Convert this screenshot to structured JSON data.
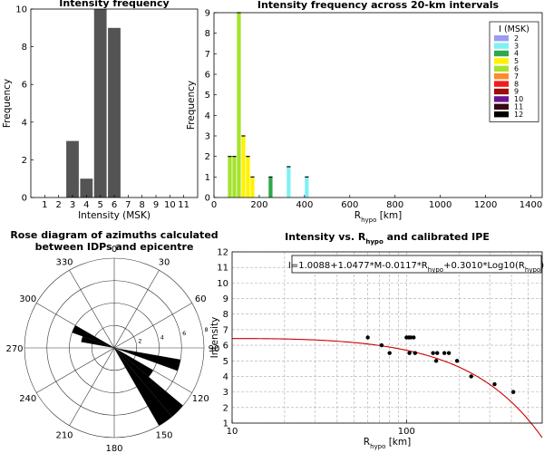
{
  "chart_data": [
    {
      "type": "bar",
      "title": "Intensity frequency",
      "xlabel": "Intensity (MSK)",
      "ylabel": "Frequency",
      "categories": [
        1,
        2,
        3,
        4,
        5,
        6,
        7,
        8,
        9,
        10,
        11
      ],
      "values": [
        0,
        0,
        3,
        1,
        10,
        9,
        0,
        0,
        0,
        0,
        0
      ],
      "xlim": [
        0,
        12
      ],
      "ylim": [
        0,
        10
      ],
      "xticks": [
        1,
        2,
        3,
        4,
        5,
        6,
        7,
        8,
        9,
        10,
        11
      ],
      "yticks": [
        0,
        2,
        4,
        6,
        8,
        10
      ],
      "bar_color": "#545454"
    },
    {
      "type": "bar",
      "title": "Intensity frequency across 20-km intervals",
      "xlabel": "R",
      "xlabel_sub": "hypo",
      "xlabel_unit": "[km]",
      "ylabel": "Frequency",
      "xlim": [
        0,
        1450
      ],
      "ylim": [
        0,
        9
      ],
      "xticks": [
        0,
        200,
        400,
        600,
        800,
        1000,
        1200,
        1400
      ],
      "yticks": [
        0,
        1,
        2,
        3,
        4,
        5,
        6,
        7,
        8,
        9
      ],
      "legend_title": "I (MSK)",
      "legend_position": "top-right",
      "series": [
        {
          "name": "2",
          "color": "#9a9cf0"
        },
        {
          "name": "3",
          "color": "#7ff0f4"
        },
        {
          "name": "4",
          "color": "#2fa84a"
        },
        {
          "name": "5",
          "color": "#fff200"
        },
        {
          "name": "6",
          "color": "#a6e22e"
        },
        {
          "name": "7",
          "color": "#ff8a2a"
        },
        {
          "name": "8",
          "color": "#f21c1c"
        },
        {
          "name": "9",
          "color": "#9e0c0c"
        },
        {
          "name": "10",
          "color": "#6a168f"
        },
        {
          "name": "11",
          "color": "#3a0810"
        },
        {
          "name": "12",
          "color": "#000000"
        }
      ],
      "bars": [
        {
          "x": 70,
          "intensity": "6",
          "value": 2
        },
        {
          "x": 90,
          "intensity": "6",
          "value": 2
        },
        {
          "x": 110,
          "intensity": "6",
          "value": 9
        },
        {
          "x": 130,
          "intensity": "5",
          "value": 3
        },
        {
          "x": 150,
          "intensity": "5",
          "value": 2
        },
        {
          "x": 170,
          "intensity": "5",
          "value": 1
        },
        {
          "x": 250,
          "intensity": "4",
          "value": 1
        },
        {
          "x": 330,
          "intensity": "3",
          "value": 1.5
        },
        {
          "x": 410,
          "intensity": "3",
          "value": 1
        }
      ]
    },
    {
      "type": "rose",
      "title": "Rose diagram of azimuths calculated",
      "title2": "between  IDPs and epicentre",
      "angle_labels": [
        {
          "deg": 0,
          "text": "0"
        },
        {
          "deg": 30,
          "text": "30"
        },
        {
          "deg": 60,
          "text": "60"
        },
        {
          "deg": 90,
          "text": "90"
        },
        {
          "deg": 120,
          "text": "120"
        },
        {
          "deg": 150,
          "text": "150"
        },
        {
          "deg": 180,
          "text": "180"
        },
        {
          "deg": 210,
          "text": "210"
        },
        {
          "deg": 240,
          "text": "240"
        },
        {
          "deg": 270,
          "text": "270"
        },
        {
          "deg": 300,
          "text": "300"
        },
        {
          "deg": 330,
          "text": "330"
        }
      ],
      "rmax": 8,
      "rings": [
        2,
        4,
        6,
        8
      ],
      "ring_labels": [
        "2",
        "4",
        "6",
        "8"
      ],
      "ring_label_bearing": 80,
      "sector_width_deg": 10,
      "sectors": [
        {
          "bearing": 285,
          "value": 3
        },
        {
          "bearing": 295,
          "value": 4
        },
        {
          "bearing": 105,
          "value": 6
        },
        {
          "bearing": 125,
          "value": 4
        },
        {
          "bearing": 135,
          "value": 8
        },
        {
          "bearing": 145,
          "value": 8
        }
      ],
      "color": "#000000"
    },
    {
      "type": "scatter",
      "title": "Intensity vs. R",
      "title_sub": "hypo",
      "title_rest": " and calibrated IPE",
      "xlabel": "R",
      "xlabel_sub": "hypo",
      "xlabel_unit": "[km]",
      "ylabel": "Intensity",
      "xscale": "log",
      "xlim": [
        10,
        600
      ],
      "ylim": [
        1,
        12
      ],
      "xticks": [
        {
          "v": 10,
          "label": "10"
        },
        {
          "v": 100,
          "label": "100"
        }
      ],
      "yticks": [
        1,
        2,
        3,
        4,
        5,
        6,
        7,
        8,
        9,
        10,
        11,
        12
      ],
      "grid": true,
      "equation": {
        "p1": "I=1.0088+1.0477*M-0.0117*R",
        "s1": "hypo",
        "p2": "+0.3010*Log10(R",
        "s2": "hypo",
        "p3": ")"
      },
      "curve": {
        "a": 1.0088,
        "b": 1.0477,
        "c": -0.0117,
        "d": 0.301,
        "M": 5.0,
        "color": "#cc0000"
      },
      "points": [
        {
          "x": 60,
          "y": 6.5
        },
        {
          "x": 72,
          "y": 6
        },
        {
          "x": 80,
          "y": 5.5
        },
        {
          "x": 100,
          "y": 6.5
        },
        {
          "x": 103,
          "y": 6.5
        },
        {
          "x": 106,
          "y": 6.5
        },
        {
          "x": 110,
          "y": 6.5
        },
        {
          "x": 104,
          "y": 5.5
        },
        {
          "x": 112,
          "y": 5.5
        },
        {
          "x": 142,
          "y": 5.5
        },
        {
          "x": 150,
          "y": 5.5
        },
        {
          "x": 148,
          "y": 5
        },
        {
          "x": 165,
          "y": 5.5
        },
        {
          "x": 175,
          "y": 5.5
        },
        {
          "x": 195,
          "y": 5
        },
        {
          "x": 235,
          "y": 4
        },
        {
          "x": 320,
          "y": 3.5
        },
        {
          "x": 410,
          "y": 3
        }
      ]
    }
  ]
}
